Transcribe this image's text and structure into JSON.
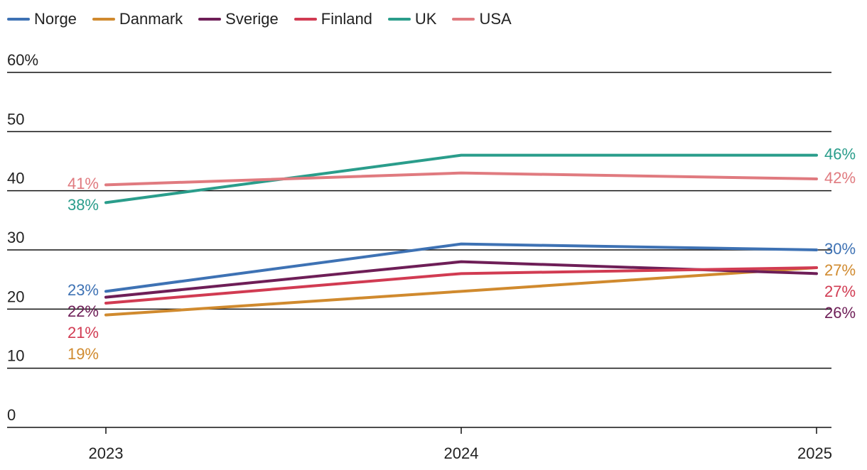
{
  "chart_data": {
    "type": "line",
    "categories": [
      "2023",
      "2024",
      "2025"
    ],
    "ylim": [
      0,
      60
    ],
    "yticks": [
      0,
      10,
      20,
      30,
      40,
      50,
      60
    ],
    "ytick_labels": [
      "0",
      "10",
      "20",
      "30",
      "40",
      "50",
      "60%"
    ],
    "legend_position": "top-left",
    "series": [
      {
        "name": "Norge",
        "color": "#3e72b4",
        "values": [
          23,
          31,
          30
        ],
        "labels": [
          "23%",
          "",
          "30%"
        ]
      },
      {
        "name": "Danmark",
        "color": "#d08a2e",
        "values": [
          19,
          23,
          27
        ],
        "labels": [
          "19%",
          "",
          "27%"
        ]
      },
      {
        "name": "Sverige",
        "color": "#6e1e57",
        "values": [
          22,
          28,
          26
        ],
        "labels": [
          "22%",
          "",
          "26%"
        ]
      },
      {
        "name": "Finland",
        "color": "#d13b52",
        "values": [
          21,
          26,
          27
        ],
        "labels": [
          "21%",
          "",
          "27%"
        ]
      },
      {
        "name": "UK",
        "color": "#2a9d8b",
        "values": [
          38,
          46,
          46
        ],
        "labels": [
          "38%",
          "",
          "46%"
        ]
      },
      {
        "name": "USA",
        "color": "#e07a7f",
        "values": [
          41,
          43,
          42
        ],
        "labels": [
          "41%",
          "",
          "42%"
        ]
      }
    ]
  }
}
